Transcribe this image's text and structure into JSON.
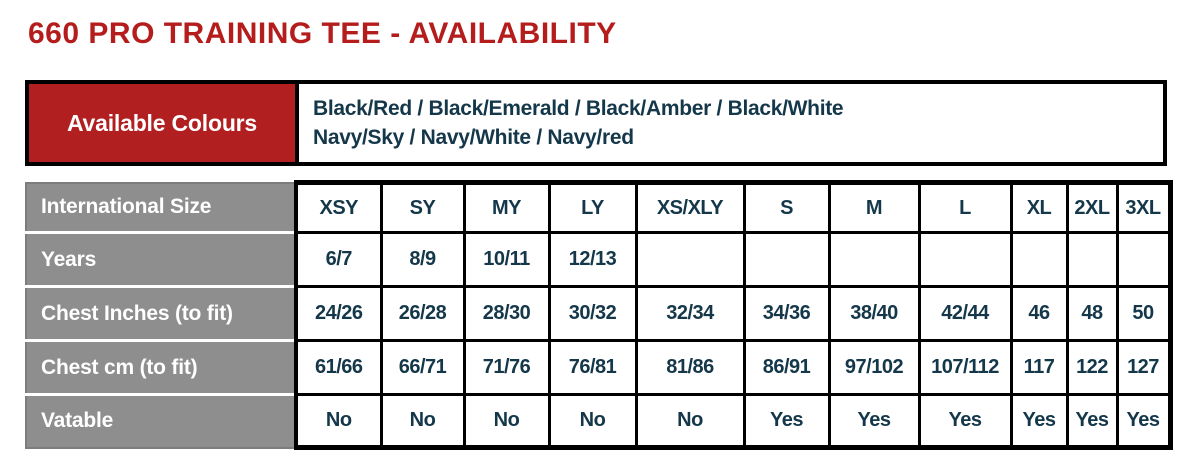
{
  "page": {
    "title": "660 PRO TRAINING TEE - AVAILABILITY"
  },
  "colors": {
    "title_red": "#b51d1d",
    "cell_red": "#b11f20",
    "header_gray": "#8e8e8e",
    "text_navy": "#14374a",
    "border_black": "#000000"
  },
  "availability": {
    "label": "Available Colours",
    "lines": [
      "Black/Red / Black/Emerald / Black/Amber / Black/White",
      "Navy/Sky / Navy/White / Navy/red"
    ]
  },
  "size_table": {
    "rows": [
      {
        "label": "International Size",
        "values": [
          "XSY",
          "SY",
          "MY",
          "LY",
          "XS/XLY",
          "S",
          "M",
          "L",
          "XL",
          "2XL",
          "3XL"
        ]
      },
      {
        "label": "Years",
        "values": [
          "6/7",
          "8/9",
          "10/11",
          "12/13",
          "",
          "",
          "",
          "",
          "",
          "",
          ""
        ]
      },
      {
        "label": "Chest Inches (to fit)",
        "values": [
          "24/26",
          "26/28",
          "28/30",
          "30/32",
          "32/34",
          "34/36",
          "38/40",
          "42/44",
          "46",
          "48",
          "50"
        ]
      },
      {
        "label": "Chest cm (to fit)",
        "values": [
          "61/66",
          "66/71",
          "71/76",
          "76/81",
          "81/86",
          "86/91",
          "97/102",
          "107/112",
          "117",
          "122",
          "127"
        ]
      },
      {
        "label": "Vatable",
        "values": [
          "No",
          "No",
          "No",
          "No",
          "No",
          "Yes",
          "Yes",
          "Yes",
          "Yes",
          "Yes",
          "Yes"
        ]
      }
    ]
  }
}
